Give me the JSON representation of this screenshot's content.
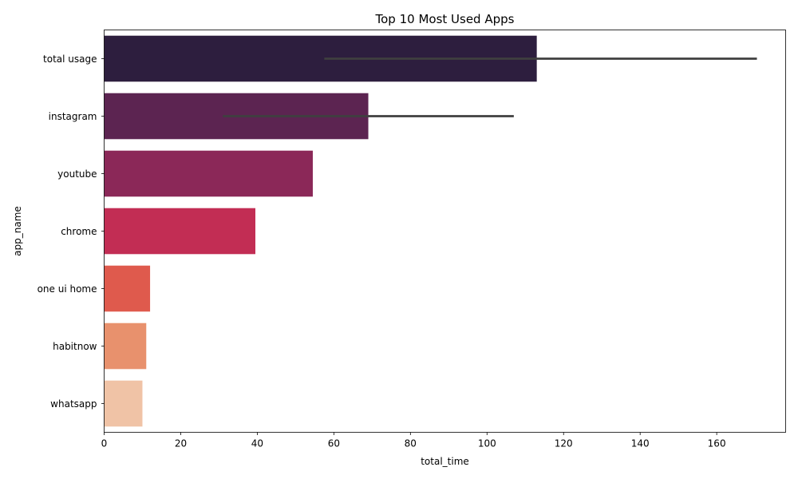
{
  "chart_data": {
    "type": "bar",
    "orientation": "horizontal",
    "title": "Top 10 Most Used Apps",
    "xlabel": "total_time",
    "ylabel": "app_name",
    "xlim": [
      0,
      178
    ],
    "xticks": [
      0,
      20,
      40,
      60,
      80,
      100,
      120,
      140,
      160
    ],
    "grid": false,
    "categories": [
      "total usage",
      "instagram",
      "youtube",
      "chrome",
      "one ui home",
      "habitnow",
      "whatsapp"
    ],
    "values": [
      113,
      69,
      54.5,
      39.5,
      12,
      11,
      10
    ],
    "error_bars": [
      {
        "category": "total usage",
        "low": 57.5,
        "high": 170.5
      },
      {
        "category": "instagram",
        "low": 31,
        "high": 107
      }
    ],
    "colors": [
      "#2d1e3e",
      "#5c2451",
      "#8b2858",
      "#c22d54",
      "#df5a4d",
      "#e8916d",
      "#f0c3a6"
    ],
    "error_bar_color": "#3f3f3f"
  }
}
